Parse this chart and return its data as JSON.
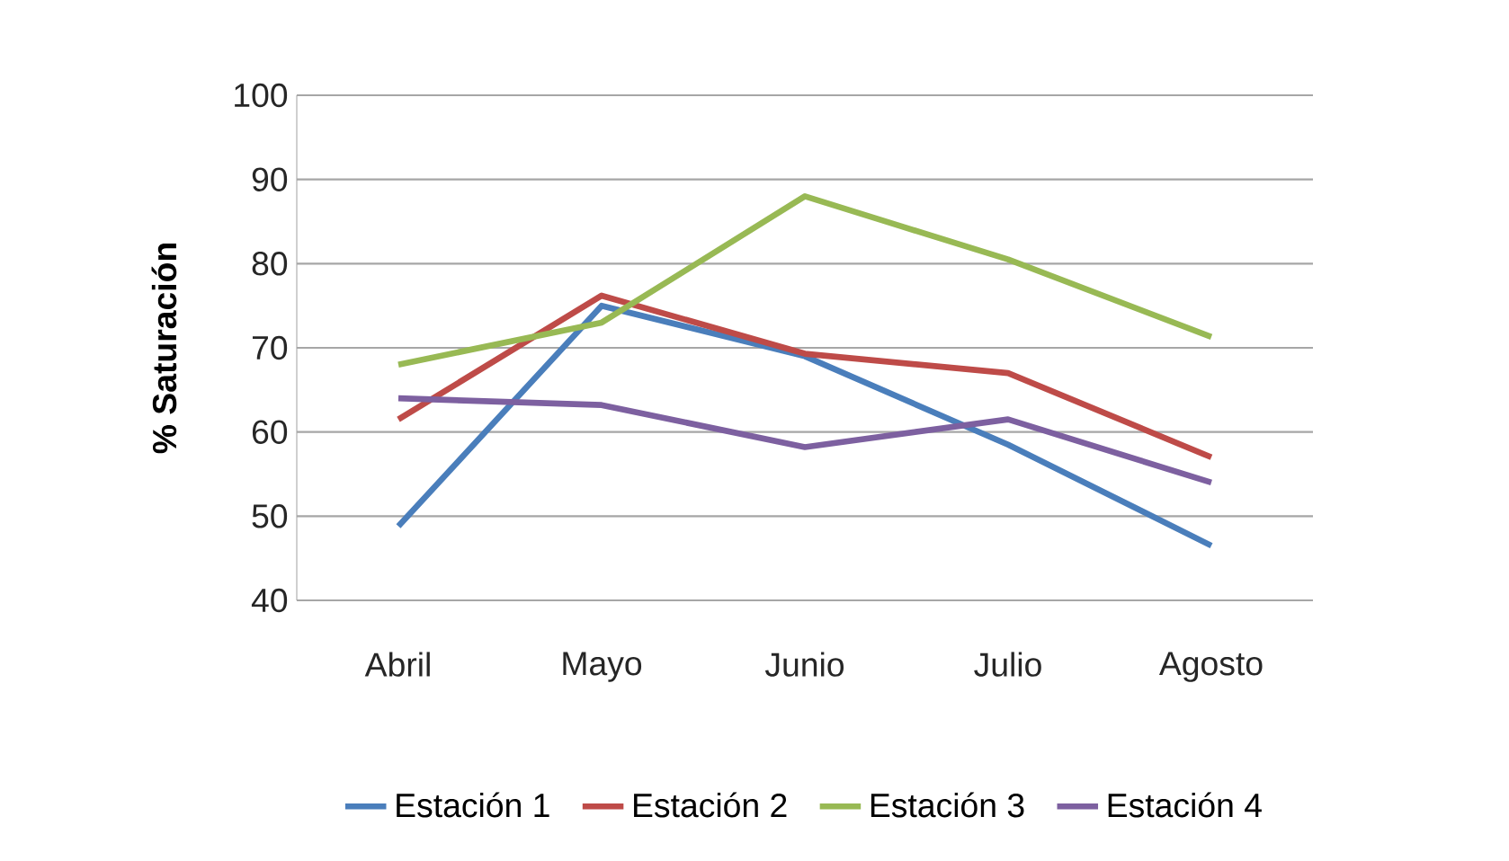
{
  "chart_data": {
    "type": "line",
    "ylabel": "% Saturación",
    "categories": [
      "Abril",
      "Mayo",
      "Junio",
      "Julio",
      "Agosto"
    ],
    "series": [
      {
        "name": "Estación 1",
        "color": "#4a7ebb",
        "values": [
          48.8,
          75,
          69,
          58.5,
          46.5
        ]
      },
      {
        "name": "Estación 2",
        "color": "#be4b48",
        "values": [
          61.5,
          76.2,
          69.3,
          67,
          57
        ]
      },
      {
        "name": "Estación 3",
        "color": "#98b954",
        "values": [
          68,
          73,
          88,
          80.5,
          71.3
        ]
      },
      {
        "name": "Estación 4",
        "color": "#7d60a0",
        "values": [
          64,
          63.2,
          58.2,
          61.5,
          54
        ]
      }
    ],
    "ylim": [
      40,
      100
    ],
    "yticks": [
      40,
      50,
      60,
      70,
      80,
      90,
      100
    ],
    "grid": "y",
    "legend": "bottom",
    "marker": "none",
    "line_style": "solid"
  }
}
